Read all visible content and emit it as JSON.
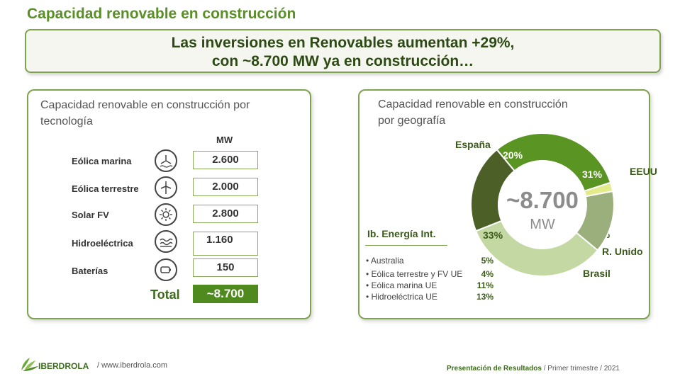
{
  "page": {
    "title": "Capacidad renovable en construcción",
    "banner_line1": "Las inversiones en Renovables aumentan +29%,",
    "banner_line2": "con ~8.700 MW ya en construcción…"
  },
  "technology_panel": {
    "title_line1": "Capacidad renovable en construcción por",
    "title_line2": "tecnología",
    "unit_header": "MW",
    "rows": [
      {
        "label": "Eólica marina",
        "icon": "offshore-wind-icon",
        "value": "2.600"
      },
      {
        "label": "Eólica terrestre",
        "icon": "onshore-wind-icon",
        "value": "2.000"
      },
      {
        "label": "Solar FV",
        "icon": "sun-icon",
        "value": "2.800"
      },
      {
        "label": "Hidroeléctrica",
        "icon": "hydro-wave-icon",
        "value": "1.160"
      },
      {
        "label": "Baterías",
        "icon": "battery-icon",
        "value": "150"
      }
    ],
    "total_label": "Total",
    "total_value": "~8.700"
  },
  "geography_panel": {
    "title_line1": "Capacidad renovable en construcción",
    "title_line2": "por geografía",
    "center_value": "~8.700",
    "center_unit": "MW",
    "ib_heading": "Ib. Energía Int.",
    "ib_items": [
      {
        "label": "• Australia",
        "value": "5%"
      },
      {
        "label": "• Eólica terrestre y FV UE",
        "value": "4%"
      },
      {
        "label": "• Eólica marina UE",
        "value": "11%"
      },
      {
        "label": "• Hidroeléctrica UE",
        "value": "13%"
      }
    ]
  },
  "chart_data": {
    "type": "pie",
    "donut": true,
    "title": "Capacidad renovable en construcción por geografía",
    "center_label": "~8.700 MW",
    "slices": [
      {
        "name": "EEUU",
        "value": 31,
        "label": "31%",
        "color": "#5a9524"
      },
      {
        "name": "R. Unido",
        "value": 2,
        "label": "2%",
        "color": "#e3ec8a"
      },
      {
        "name": "Brasil",
        "value": 14,
        "label": "14%",
        "color": "#9aaf7c"
      },
      {
        "name": "Ib. Energía Int.",
        "value": 33,
        "label": "33%",
        "color": "#c3d8a2"
      },
      {
        "name": "España",
        "value": 20,
        "label": "20%",
        "color": "#4b5f26"
      }
    ]
  },
  "footer": {
    "brand": "IBERDROLA",
    "url": "/ www.iberdrola.com",
    "report": "Presentación de Resultados",
    "period": "/ Primer trimestre / 2021"
  },
  "colors": {
    "accent": "#5a8f27",
    "border": "#7ea24e",
    "total_fill": "#4f8a1e"
  }
}
